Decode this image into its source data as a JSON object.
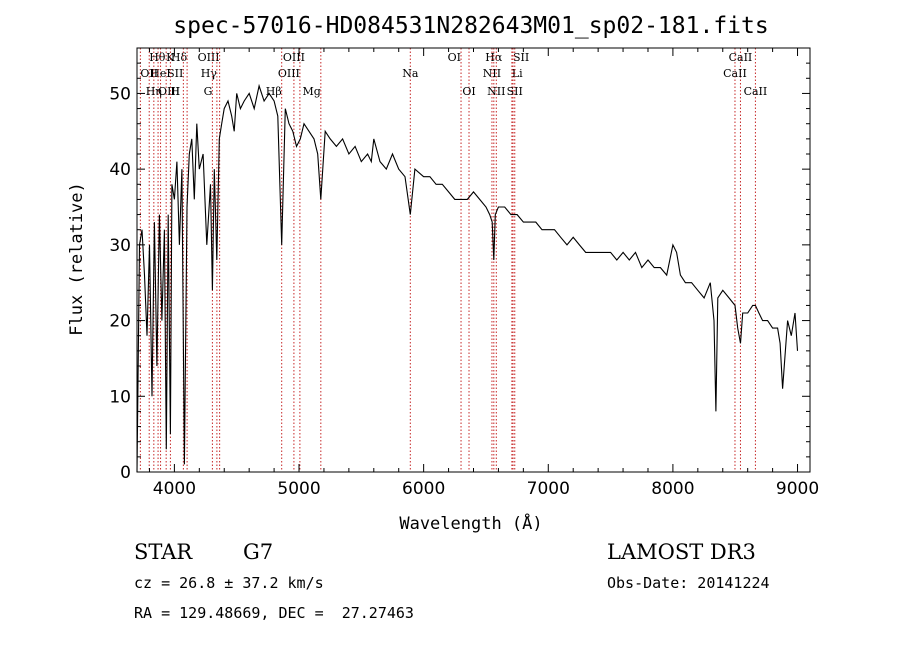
{
  "chart_data": {
    "type": "line",
    "title": "spec-57016-HD084531N282643M01_sp02-181.fits",
    "xlabel": "Wavelength (Å)",
    "ylabel": "Flux (relative)",
    "xlim": [
      3700,
      9100
    ],
    "ylim": [
      0,
      56
    ],
    "xticks": [
      4000,
      5000,
      6000,
      7000,
      8000,
      9000
    ],
    "xtick_labels": [
      "4000",
      "5000",
      "6000",
      "7000",
      "8000",
      "9000"
    ],
    "yticks": [
      0,
      10,
      20,
      30,
      40,
      50
    ],
    "ytick_labels": [
      "0",
      "10",
      "20",
      "30",
      "40",
      "50"
    ],
    "series": [
      {
        "name": "spectrum",
        "x": [
          3700,
          3720,
          3740,
          3760,
          3780,
          3800,
          3820,
          3840,
          3860,
          3880,
          3900,
          3920,
          3935,
          3950,
          3968,
          3980,
          4000,
          4020,
          4040,
          4060,
          4080,
          4101,
          4120,
          4140,
          4160,
          4180,
          4200,
          4230,
          4260,
          4290,
          4305,
          4320,
          4340,
          4360,
          4380,
          4400,
          4430,
          4460,
          4480,
          4500,
          4530,
          4560,
          4600,
          4640,
          4680,
          4720,
          4760,
          4800,
          4830,
          4861,
          4890,
          4920,
          4950,
          4980,
          5010,
          5040,
          5080,
          5120,
          5150,
          5175,
          5210,
          5250,
          5300,
          5350,
          5400,
          5450,
          5500,
          5550,
          5580,
          5600,
          5650,
          5700,
          5750,
          5800,
          5850,
          5893,
          5930,
          6000,
          6050,
          6100,
          6150,
          6200,
          6250,
          6300,
          6350,
          6400,
          6450,
          6500,
          6530,
          6550,
          6563,
          6575,
          6600,
          6650,
          6700,
          6750,
          6800,
          6850,
          6900,
          6950,
          7000,
          7050,
          7100,
          7150,
          7200,
          7250,
          7300,
          7350,
          7400,
          7450,
          7500,
          7550,
          7600,
          7650,
          7700,
          7750,
          7800,
          7850,
          7900,
          7950,
          8000,
          8030,
          8060,
          8100,
          8150,
          8200,
          8250,
          8300,
          8330,
          8345,
          8360,
          8400,
          8450,
          8498,
          8520,
          8542,
          8560,
          8600,
          8640,
          8662,
          8690,
          8720,
          8760,
          8800,
          8840,
          8860,
          8880,
          8920,
          8950,
          8980,
          9000
        ],
        "y": [
          0,
          30,
          32,
          26,
          18,
          30,
          10,
          33,
          14,
          34,
          20,
          32,
          3,
          34,
          5,
          38,
          36,
          41,
          30,
          40,
          1,
          35,
          42,
          44,
          36,
          46,
          40,
          42,
          30,
          38,
          24,
          40,
          28,
          44,
          46,
          48,
          49,
          47,
          45,
          50,
          48,
          49,
          50,
          48,
          51,
          49,
          50,
          49,
          47,
          30,
          48,
          46,
          45,
          43,
          44,
          46,
          45,
          44,
          42,
          36,
          45,
          44,
          43,
          44,
          42,
          43,
          41,
          42,
          41,
          44,
          41,
          40,
          42,
          40,
          39,
          34,
          40,
          39,
          39,
          38,
          38,
          37,
          36,
          36,
          36,
          37,
          36,
          35,
          34,
          33,
          28,
          34,
          35,
          35,
          34,
          34,
          33,
          33,
          33,
          32,
          32,
          32,
          31,
          30,
          31,
          30,
          29,
          29,
          29,
          29,
          29,
          28,
          29,
          28,
          29,
          27,
          28,
          27,
          27,
          26,
          30,
          29,
          26,
          25,
          25,
          24,
          23,
          25,
          20,
          8,
          23,
          24,
          23,
          22,
          19,
          17,
          21,
          21,
          22,
          22,
          21,
          20,
          20,
          19,
          19,
          17,
          11,
          20,
          18,
          21,
          16
        ],
        "color": "#000000"
      }
    ],
    "line_markers": {
      "color": "#c62828",
      "lines": [
        {
          "name": "Hθ",
          "wavelength": 3798,
          "row": 1,
          "anchor": "start"
        },
        {
          "name": "K",
          "wavelength": 3934,
          "row": 1,
          "anchor": "start"
        },
        {
          "name": "Hδ",
          "wavelength": 4102,
          "row": 1,
          "anchor": "end"
        },
        {
          "name": "OIII",
          "wavelength": 4363,
          "row": 1,
          "anchor": "end"
        },
        {
          "name": "OIII",
          "wavelength": 4959,
          "row": 1,
          "anchor": "middle"
        },
        {
          "name": "OI",
          "wavelength": 6300,
          "row": 1,
          "anchor": "end"
        },
        {
          "name": "Hα",
          "wavelength": 6563,
          "row": 1,
          "anchor": "middle"
        },
        {
          "name": "SII",
          "wavelength": 6717,
          "row": 1,
          "anchor": "start"
        },
        {
          "name": "CaII",
          "wavelength": 8542,
          "row": 1,
          "anchor": "middle"
        },
        {
          "name": "OII",
          "wavelength": 3727,
          "row": 2,
          "anchor": "start"
        },
        {
          "name": "HeI",
          "wavelength": 3889,
          "row": 2,
          "anchor": "middle"
        },
        {
          "name": "SII",
          "wavelength": 4072,
          "row": 2,
          "anchor": "end"
        },
        {
          "name": "Hγ",
          "wavelength": 4341,
          "row": 2,
          "anchor": "end"
        },
        {
          "name": "OIII",
          "wavelength": 5007,
          "row": 2,
          "anchor": "end"
        },
        {
          "name": "Na",
          "wavelength": 5893,
          "row": 2,
          "anchor": "middle"
        },
        {
          "name": "NII",
          "wavelength": 6548,
          "row": 2,
          "anchor": "middle"
        },
        {
          "name": "Li",
          "wavelength": 6708,
          "row": 2,
          "anchor": "start"
        },
        {
          "name": "CaII",
          "wavelength": 8498,
          "row": 2,
          "anchor": "middle"
        },
        {
          "name": "OIII",
          "wavelength": 3869,
          "row": 3,
          "anchor": "start"
        },
        {
          "name": "Hη",
          "wavelength": 3835,
          "row": 3,
          "anchor": "middle"
        },
        {
          "name": "H",
          "wavelength": 3968,
          "row": 3,
          "anchor": "start"
        },
        {
          "name": "G",
          "wavelength": 4305,
          "row": 3,
          "anchor": "end"
        },
        {
          "name": "Hβ",
          "wavelength": 4861,
          "row": 3,
          "anchor": "end"
        },
        {
          "name": "Mg",
          "wavelength": 5175,
          "row": 3,
          "anchor": "end"
        },
        {
          "name": "OI",
          "wavelength": 6364,
          "row": 3,
          "anchor": "middle"
        },
        {
          "name": "NII",
          "wavelength": 6583,
          "row": 3,
          "anchor": "middle"
        },
        {
          "name": "SII",
          "wavelength": 6731,
          "row": 3,
          "anchor": "middle"
        },
        {
          "name": "CaII",
          "wavelength": 8662,
          "row": 3,
          "anchor": "middle"
        }
      ]
    }
  },
  "info": {
    "object_class": "STAR",
    "subclass": "G7",
    "survey": "LAMOST DR3",
    "cz": "cz = 26.8 ± 37.2 km/s",
    "obs_date": "Obs-Date: 20141224",
    "coords": "RA = 129.48669, DEC =  27.27463"
  }
}
